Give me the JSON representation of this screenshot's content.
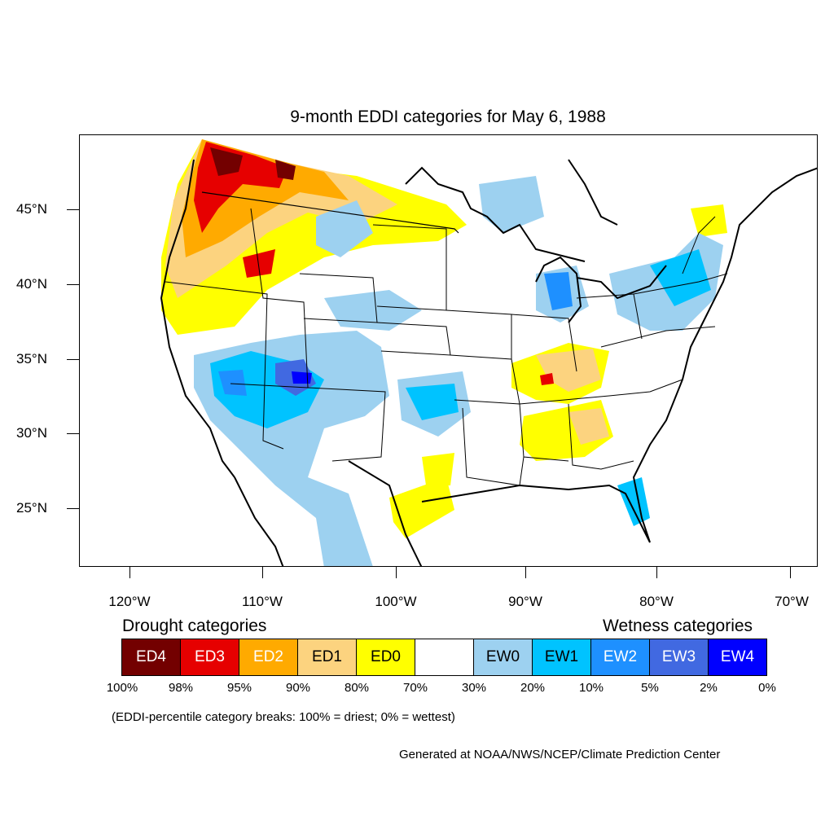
{
  "title": "9-month EDDI categories for May 6, 1988",
  "latitude_labels": [
    "45°N",
    "40°N",
    "35°N",
    "30°N",
    "25°N"
  ],
  "longitude_labels": [
    "120°W",
    "110°W",
    "100°W",
    "90°W",
    "80°W",
    "70°W"
  ],
  "legend": {
    "drought_heading": "Drought categories",
    "wetness_heading": "Wetness categories",
    "categories": [
      {
        "label": "ED4",
        "color": "#730000",
        "text_color": "#ffffff"
      },
      {
        "label": "ED3",
        "color": "#e60000",
        "text_color": "#ffffff"
      },
      {
        "label": "ED2",
        "color": "#ffaa00",
        "text_color": "#ffffff"
      },
      {
        "label": "ED1",
        "color": "#fcd37f",
        "text_color": "#000000"
      },
      {
        "label": "ED0",
        "color": "#ffff00",
        "text_color": "#000000"
      },
      {
        "label": "",
        "color": "#ffffff",
        "text_color": "#000000"
      },
      {
        "label": "EW0",
        "color": "#9dd1f0",
        "text_color": "#000000"
      },
      {
        "label": "EW1",
        "color": "#00c3ff",
        "text_color": "#000000"
      },
      {
        "label": "EW2",
        "color": "#1e90ff",
        "text_color": "#ffffff"
      },
      {
        "label": "EW3",
        "color": "#4169e1",
        "text_color": "#ffffff"
      },
      {
        "label": "EW4",
        "color": "#0000ff",
        "text_color": "#ffffff"
      }
    ],
    "percentile_breaks": [
      "100%",
      "98%",
      "95%",
      "90%",
      "80%",
      "70%",
      "30%",
      "20%",
      "10%",
      "5%",
      "2%",
      "0%"
    ]
  },
  "note": "(EDDI-percentile category breaks: 100% = driest; 0% = wettest)",
  "credit": "Generated at NOAA/NWS/NCEP/Climate Prediction Center"
}
